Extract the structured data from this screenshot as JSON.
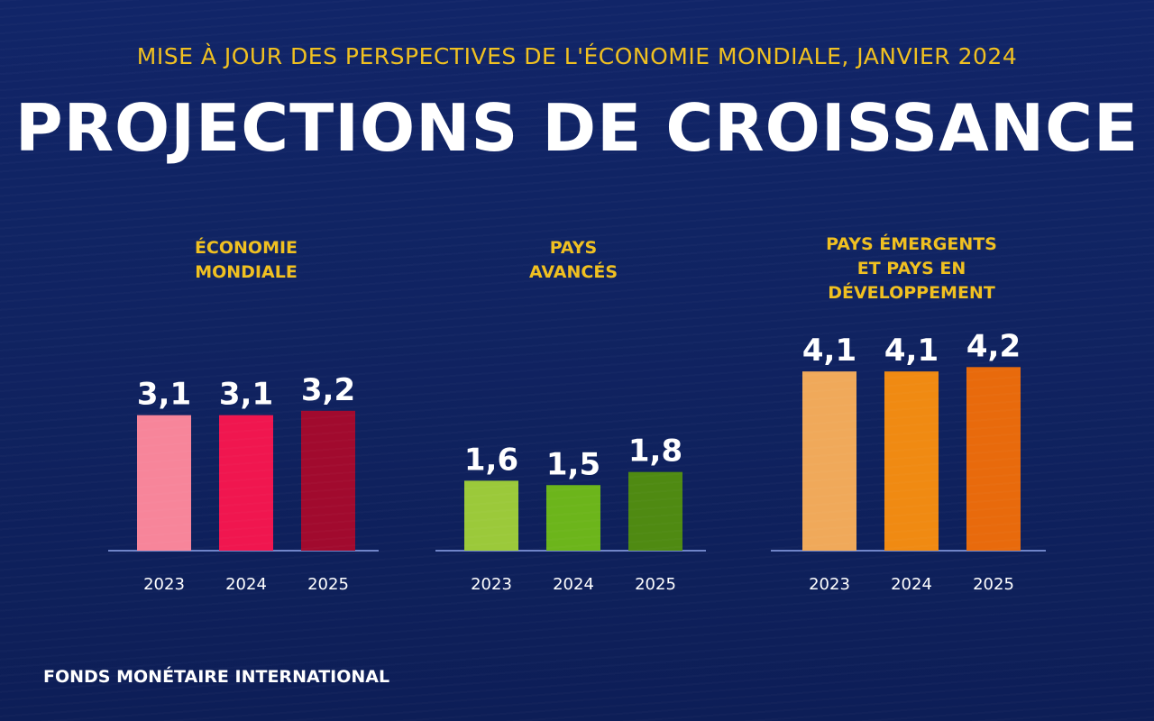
{
  "header": {
    "subtitle": "MISE À JOUR DES PERSPECTIVES DE L'ÉCONOMIE MONDIALE, JANVIER 2024",
    "title": "PROJECTIONS DE CROISSANCE"
  },
  "footer": {
    "source": "FONDS MONÉTAIRE INTERNATIONAL"
  },
  "colors": {
    "background": "#102361",
    "subtitle": "#f0c020",
    "group_label": "#f0c020",
    "value_label": "#ffffff",
    "tick_label": "#ffffff",
    "baseline": "#6f84c8"
  },
  "chart_data": [
    {
      "type": "bar",
      "title": "ÉCONOMIE MONDIALE",
      "title_lines": [
        "ÉCONOMIE",
        "MONDIALE"
      ],
      "categories": [
        "2023",
        "2024",
        "2025"
      ],
      "values": [
        3.1,
        3.1,
        3.2
      ],
      "value_labels": [
        "3,1",
        "3,1",
        "3,2"
      ],
      "colors": [
        "#f7859a",
        "#f0164f",
        "#a10a2e"
      ]
    },
    {
      "type": "bar",
      "title": "PAYS AVANCÉS",
      "title_lines": [
        "PAYS",
        "AVANCÉS"
      ],
      "categories": [
        "2023",
        "2024",
        "2025"
      ],
      "values": [
        1.6,
        1.5,
        1.8
      ],
      "value_labels": [
        "1,6",
        "1,5",
        "1,8"
      ],
      "colors": [
        "#9bc93a",
        "#6cb51b",
        "#4f8a12"
      ]
    },
    {
      "type": "bar",
      "title": "PAYS ÉMERGENTS ET PAYS EN DÉVELOPPEMENT",
      "title_lines": [
        "PAYS ÉMERGENTS",
        "ET PAYS EN",
        "DÉVELOPPEMENT"
      ],
      "categories": [
        "2023",
        "2024",
        "2025"
      ],
      "values": [
        4.1,
        4.1,
        4.2
      ],
      "value_labels": [
        "4,1",
        "4,1",
        "4,2"
      ],
      "colors": [
        "#f0a95a",
        "#f08a12",
        "#e86a0c"
      ]
    }
  ]
}
